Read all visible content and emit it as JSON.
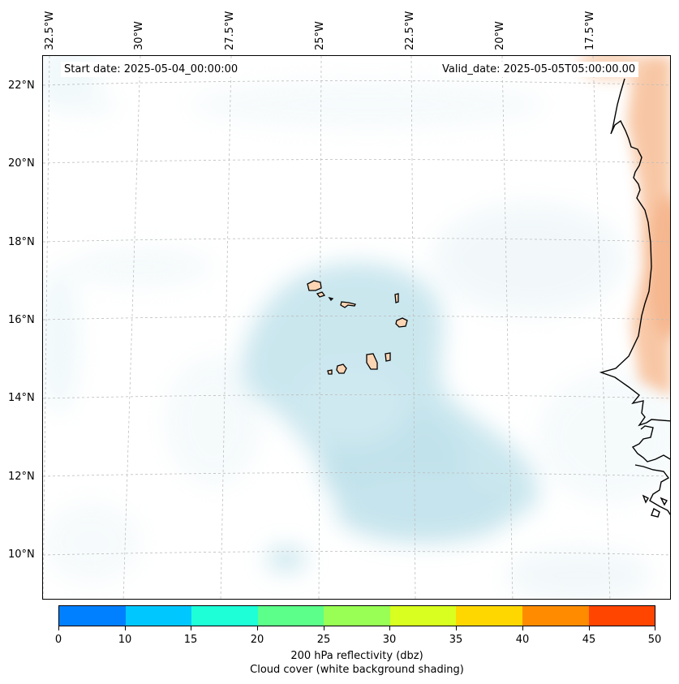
{
  "map": {
    "start_date": "Start date: 2025-05-04_00:00:00",
    "valid_date": "Valid_date: 2025-05-05T05:00:00.00",
    "lon_labels": [
      "32.5°W",
      "30°W",
      "27.5°W",
      "25°W",
      "22.5°W",
      "20°W",
      "17.5°W"
    ],
    "lat_labels": [
      "22°N",
      "20°N",
      "18°N",
      "16°N",
      "14°N",
      "12°N",
      "10°N"
    ],
    "land_color": "#fcd5b4",
    "cloud_color": "#b9dfe9",
    "warm_color": "#f5b080"
  },
  "colorbar": {
    "ticks": [
      "0",
      "10",
      "15",
      "20",
      "25",
      "30",
      "35",
      "40",
      "45",
      "50"
    ],
    "colors": [
      "#0080ff",
      "#00c8ff",
      "#1effd8",
      "#5cff8a",
      "#99ff55",
      "#d8ff20",
      "#ffd700",
      "#ff8c00",
      "#ff4500"
    ],
    "title": "200 hPa reflectivity (dbz)",
    "subtitle": "Cloud cover (white background shading)"
  }
}
